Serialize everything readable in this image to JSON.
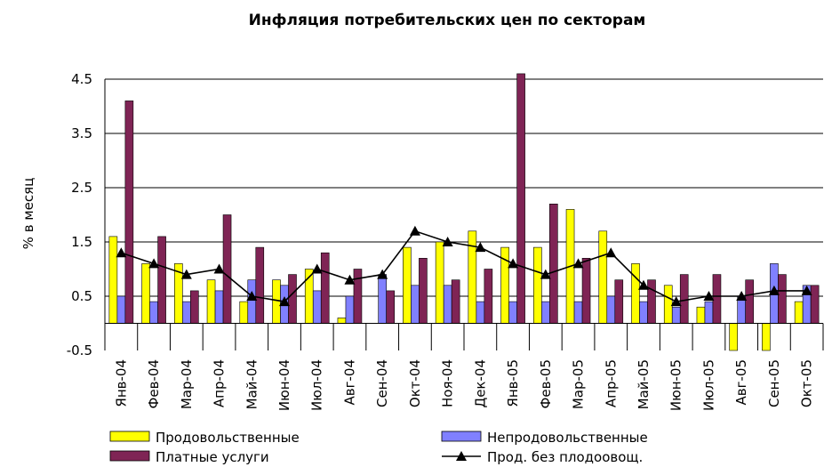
{
  "chart_data": {
    "type": "bar",
    "title": "Инфляция потребительских цен по секторам",
    "ylabel": "% в месяц",
    "xlabel": "",
    "ylim": [
      -0.5,
      4.5
    ],
    "yticks": [
      "4.5",
      "3.5",
      "2.5",
      "1.5",
      "0.5",
      "-0.5"
    ],
    "grid": "horizontal",
    "legend": "bottom",
    "categories": [
      "Янв-04",
      "Фев-04",
      "Мар-04",
      "Апр-04",
      "Май-04",
      "Июн-04",
      "Июл-04",
      "Авг-04",
      "Сен-04",
      "Окт-04",
      "Ноя-04",
      "Дек-04",
      "Янв-05",
      "Фев-05",
      "Мар-05",
      "Апр-05",
      "Май-05",
      "Июн-05",
      "Июл-05",
      "Авг-05",
      "Сен-05",
      "Окт-05"
    ],
    "series": [
      {
        "name": "Продовольственные",
        "kind": "bar",
        "color": "#ffff00",
        "values": [
          1.6,
          1.1,
          1.1,
          0.8,
          0.4,
          0.8,
          1.0,
          0.1,
          0.0,
          1.4,
          1.5,
          1.7,
          1.4,
          1.4,
          2.1,
          1.7,
          1.1,
          0.7,
          0.3,
          -0.5,
          -0.5,
          0.4
        ]
      },
      {
        "name": "Непродовольственные",
        "kind": "bar",
        "color": "#8080ff",
        "values": [
          0.5,
          0.4,
          0.4,
          0.6,
          0.8,
          0.7,
          0.6,
          0.5,
          0.9,
          0.7,
          0.7,
          0.4,
          0.4,
          0.4,
          0.4,
          0.5,
          0.4,
          0.3,
          0.4,
          0.5,
          1.1,
          0.7
        ]
      },
      {
        "name": "Платные услуги",
        "kind": "bar",
        "color": "#7f2455",
        "values": [
          4.1,
          1.6,
          0.6,
          2.0,
          1.4,
          0.9,
          1.3,
          1.0,
          0.6,
          1.2,
          0.8,
          1.0,
          4.6,
          2.2,
          1.2,
          0.8,
          0.8,
          0.9,
          0.9,
          0.8,
          0.9,
          0.7
        ]
      },
      {
        "name": "Прод. без плодоовощ.",
        "kind": "line",
        "color": "#000000",
        "values": [
          1.3,
          1.1,
          0.9,
          1.0,
          0.5,
          0.4,
          1.0,
          0.8,
          0.9,
          1.7,
          1.5,
          1.4,
          1.1,
          0.9,
          1.1,
          1.3,
          0.7,
          0.4,
          0.5,
          0.5,
          0.6,
          0.6
        ]
      }
    ]
  }
}
